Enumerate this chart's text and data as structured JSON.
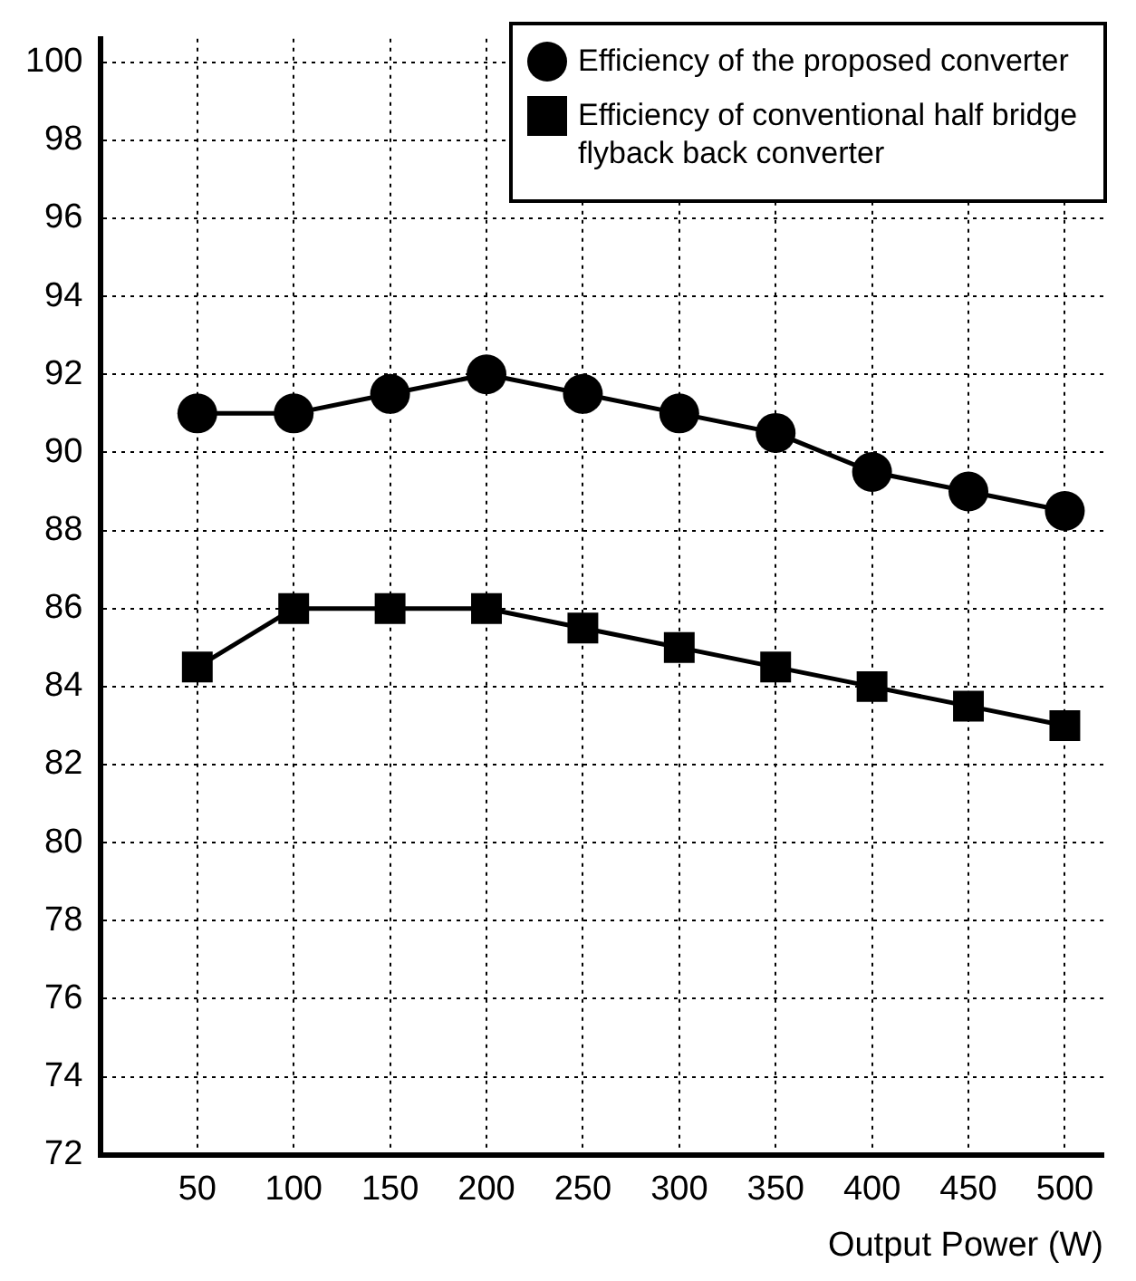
{
  "chart_data": {
    "type": "line",
    "xlabel": "Output Power (W)",
    "x": [
      50,
      100,
      150,
      200,
      250,
      300,
      350,
      400,
      450,
      500
    ],
    "series": [
      {
        "name": "Efficiency of the proposed converter",
        "color": "#000000",
        "marker": "circle",
        "values": [
          91,
          91,
          91.5,
          92,
          91.5,
          91,
          90.5,
          89.5,
          89,
          88.5
        ]
      },
      {
        "name": "Efficiency of conventional half bridge flyback back converter",
        "color": "#000000",
        "marker": "square",
        "values": [
          84.5,
          86,
          86,
          86,
          85.5,
          85,
          84.5,
          84,
          83.5,
          83
        ]
      }
    ],
    "xlim": [
      0,
      520
    ],
    "xticks": [
      50,
      100,
      150,
      200,
      250,
      300,
      350,
      400,
      450,
      500
    ],
    "ylim": [
      72,
      100.6
    ],
    "yticks": [
      72,
      74,
      76,
      78,
      80,
      82,
      84,
      86,
      88,
      90,
      92,
      94,
      96,
      98,
      100
    ],
    "grid": true,
    "legend": "top right",
    "line_style": "solid"
  }
}
